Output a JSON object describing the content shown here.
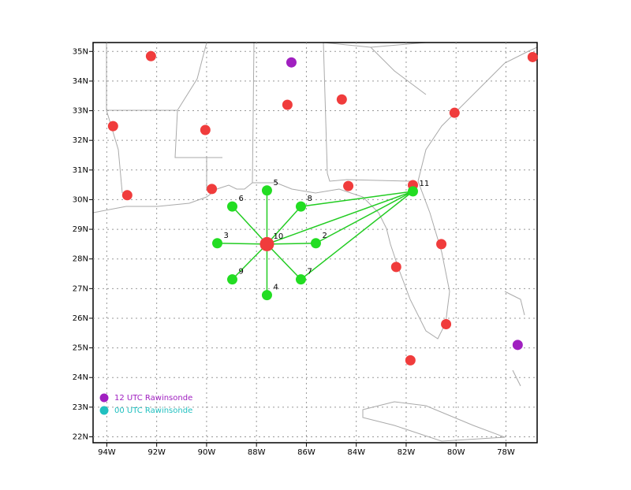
{
  "chart_data": {
    "type": "map",
    "xlim": [
      -94.55,
      -76.75
    ],
    "ylim": [
      21.8,
      35.3
    ],
    "xticks": [
      {
        "value": -94,
        "label": "94W"
      },
      {
        "value": -92,
        "label": "92W"
      },
      {
        "value": -90,
        "label": "90W"
      },
      {
        "value": -88,
        "label": "88W"
      },
      {
        "value": -86,
        "label": "86W"
      },
      {
        "value": -84,
        "label": "84W"
      },
      {
        "value": -82,
        "label": "82W"
      },
      {
        "value": -80,
        "label": "80W"
      },
      {
        "value": -78,
        "label": "78W"
      }
    ],
    "yticks": [
      {
        "value": 22,
        "label": "22N"
      },
      {
        "value": 23,
        "label": "23N"
      },
      {
        "value": 24,
        "label": "24N"
      },
      {
        "value": 25,
        "label": "25N"
      },
      {
        "value": 26,
        "label": "26N"
      },
      {
        "value": 27,
        "label": "27N"
      },
      {
        "value": 28,
        "label": "28N"
      },
      {
        "value": 29,
        "label": "29N"
      },
      {
        "value": 30,
        "label": "30N"
      },
      {
        "value": 31,
        "label": "31N"
      },
      {
        "value": 32,
        "label": "32N"
      },
      {
        "value": 33,
        "label": "33N"
      },
      {
        "value": 34,
        "label": "34N"
      },
      {
        "value": 35,
        "label": "35N"
      }
    ],
    "grid": true,
    "series": [
      {
        "name": "12 UTC Rawinsonde",
        "color": "#a020c0",
        "x": [
          -86.6,
          -77.53
        ],
        "values": [
          34.63,
          25.1
        ]
      },
      {
        "name": "00 UTC Rawinsonde",
        "color": "#20c0c0",
        "x": [],
        "values": []
      },
      {
        "color": "#f03c3c",
        "x": [
          -92.23,
          -93.75,
          -90.05,
          -86.76,
          -84.58,
          -80.06,
          -76.93,
          -93.18,
          -89.79,
          -84.32,
          -81.73,
          -80.59,
          -82.4,
          -80.4,
          -81.83
        ],
        "values": [
          34.84,
          32.48,
          32.35,
          33.2,
          33.38,
          32.93,
          34.81,
          30.15,
          30.36,
          30.46,
          30.49,
          28.5,
          27.73,
          25.8,
          24.58
        ]
      },
      {
        "color": "#22dd22",
        "x": [
          -85.62,
          -89.57,
          -87.58,
          -87.58,
          -88.97,
          -86.22,
          -86.22,
          -88.97,
          -81.73
        ],
        "values": [
          28.53,
          28.53,
          26.78,
          30.31,
          29.77,
          27.31,
          29.77,
          27.31,
          30.28
        ],
        "labels": [
          "2",
          "3",
          "4",
          "5",
          "6",
          "7",
          "8",
          "9",
          "11"
        ]
      },
      {
        "color": "#f03c3c",
        "x": [
          -87.58
        ],
        "values": [
          28.5
        ],
        "labels": [
          "10"
        ]
      }
    ]
  }
}
